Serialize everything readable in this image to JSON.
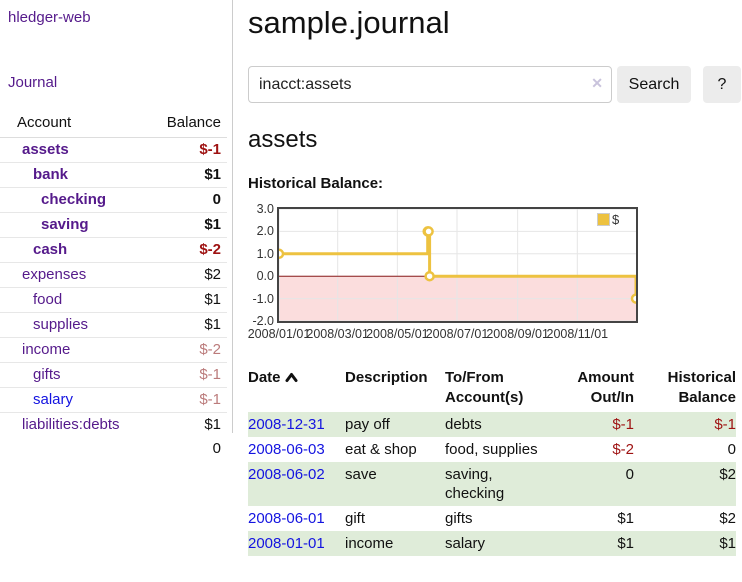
{
  "palette": {
    "purple": "#551a8b",
    "blue_link": "#1414e0",
    "neg_red": "#9e1212",
    "neg_muted": "#bb7b7b",
    "row_green": "#dfecd9",
    "button_bg": "#ececec",
    "border_gray": "#cccccc",
    "chart_gold": "#edc240",
    "chart_pink": "#fbdddd",
    "chart_zero_red": "#8b1a1a",
    "chart_grid": "#e6e6e6",
    "chart_border": "#444444"
  },
  "sidebar": {
    "app_title": "hledger-web",
    "journal_label": "Journal",
    "account_header": "Account",
    "balance_header": "Balance",
    "accounts": [
      {
        "name": "assets",
        "level": 1,
        "bold": true,
        "name_style": "purple",
        "balance": "$-1",
        "balance_style": "neg"
      },
      {
        "name": "bank",
        "level": 2,
        "bold": true,
        "name_style": "purple",
        "balance": "$1",
        "balance_style": ""
      },
      {
        "name": "checking",
        "level": 3,
        "bold": true,
        "name_style": "purple",
        "balance": "0",
        "balance_style": ""
      },
      {
        "name": "saving",
        "level": 3,
        "bold": true,
        "name_style": "purple",
        "balance": "$1",
        "balance_style": ""
      },
      {
        "name": "cash",
        "level": 2,
        "bold": true,
        "name_style": "purple",
        "balance": "$-2",
        "balance_style": "neg"
      },
      {
        "name": "expenses",
        "level": 1,
        "bold": false,
        "name_style": "purple",
        "balance": "$2",
        "balance_style": ""
      },
      {
        "name": "food",
        "level": 2,
        "bold": false,
        "name_style": "purple",
        "balance": "$1",
        "balance_style": ""
      },
      {
        "name": "supplies",
        "level": 2,
        "bold": false,
        "name_style": "purple",
        "balance": "$1",
        "balance_style": ""
      },
      {
        "name": "income",
        "level": 1,
        "bold": false,
        "name_style": "purple",
        "balance": "$-2",
        "balance_style": "neg-muted"
      },
      {
        "name": "gifts",
        "level": 2,
        "bold": false,
        "name_style": "purple",
        "balance": "$-1",
        "balance_style": "neg-muted"
      },
      {
        "name": "salary",
        "level": 2,
        "bold": false,
        "name_style": "blue",
        "balance": "$-1",
        "balance_style": "neg-muted"
      },
      {
        "name": "liabilities:debts",
        "level": 1,
        "bold": false,
        "name_style": "purple",
        "balance": "$1",
        "balance_style": ""
      }
    ],
    "total": "0"
  },
  "header": {
    "title": "sample.journal"
  },
  "search": {
    "value": "inacct:assets",
    "clear_icon": "✕",
    "button_label": "Search",
    "help_label": "?"
  },
  "account_page": {
    "heading": "assets",
    "chart_label": "Historical Balance:"
  },
  "chart_data": {
    "type": "line",
    "style": "step",
    "title": "Historical Balance",
    "legend": [
      {
        "label": "$",
        "color": "#edc240"
      }
    ],
    "legend_position": "top-right",
    "grid": true,
    "x_range": [
      "2008/01/01",
      "2008/12/31"
    ],
    "ylim": [
      -2,
      3
    ],
    "y_ticks": [
      "3.0",
      "2.0",
      "1.0",
      "0.0",
      "-1.0",
      "-2.0"
    ],
    "x_ticks": [
      "2008/01/01",
      "2008/03/01",
      "2008/05/01",
      "2008/07/01",
      "2008/09/01",
      "2008/11/01"
    ],
    "series": [
      {
        "name": "$",
        "points": [
          {
            "date": "2008/01/01",
            "value": 1
          },
          {
            "date": "2008/06/01",
            "value": 2
          },
          {
            "date": "2008/06/02",
            "value": 2
          },
          {
            "date": "2008/06/03",
            "value": 0
          },
          {
            "date": "2008/12/31",
            "value": -1
          }
        ]
      }
    ],
    "negative_region_shaded": true
  },
  "transactions": {
    "columns": [
      {
        "id": "date",
        "lines": [
          "Date"
        ],
        "align": "left",
        "sorted_asc": true
      },
      {
        "id": "description",
        "lines": [
          "Description"
        ],
        "align": "left"
      },
      {
        "id": "accounts",
        "lines": [
          "To/From",
          "Account(s)"
        ],
        "align": "left"
      },
      {
        "id": "amount",
        "lines": [
          "Amount",
          "Out/In"
        ],
        "align": "right"
      },
      {
        "id": "balance",
        "lines": [
          "Historical",
          "Balance"
        ],
        "align": "right"
      }
    ],
    "rows": [
      {
        "date": "2008-12-31",
        "description": "pay off",
        "accounts": [
          "debts"
        ],
        "amount": "$-1",
        "amount_style": "neg",
        "balance": "$-1",
        "balance_style": "neg",
        "shaded": true
      },
      {
        "date": "2008-06-03",
        "description": "eat & shop",
        "accounts": [
          "food, supplies"
        ],
        "amount": "$-2",
        "amount_style": "neg",
        "balance": "0",
        "balance_style": "",
        "shaded": false
      },
      {
        "date": "2008-06-02",
        "description": "save",
        "accounts": [
          "saving,",
          "checking"
        ],
        "amount": "0",
        "amount_style": "",
        "balance": "$2",
        "balance_style": "",
        "shaded": true
      },
      {
        "date": "2008-06-01",
        "description": "gift",
        "accounts": [
          "gifts"
        ],
        "amount": "$1",
        "amount_style": "",
        "balance": "$2",
        "balance_style": "",
        "shaded": false
      },
      {
        "date": "2008-01-01",
        "description": "income",
        "accounts": [
          "salary"
        ],
        "amount": "$1",
        "amount_style": "",
        "balance": "$1",
        "balance_style": "",
        "shaded": true
      }
    ]
  }
}
